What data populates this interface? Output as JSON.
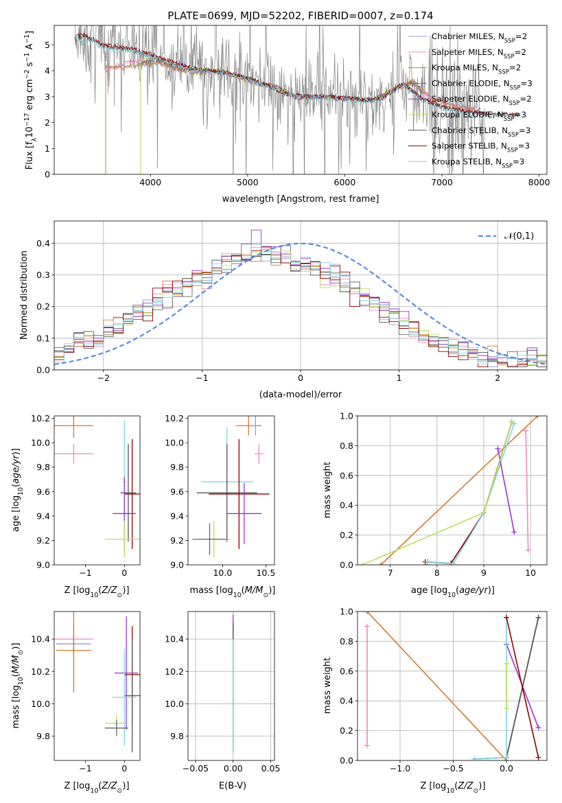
{
  "colors": {
    "chabrier_miles": "#8da0cb",
    "salpeter_miles": "#e78ac3",
    "kroupa_miles": "#d07a2a",
    "chabrier_elodie": "#666666",
    "salpeter_elodie": "#9932cc",
    "kroupa_elodie": "#b8e05a",
    "chabrier_stelib": "#555555",
    "salpeter_stelib": "#8b0000",
    "kroupa_stelib": "#7fd3e0",
    "data": "#808080",
    "normal": "#5b8ad9"
  },
  "chart_data": [
    {
      "id": "spectrum",
      "type": "line",
      "title": "PLATE=0699, MJD=52202, FIBERID=0007, z=0.174",
      "xlabel": "wavelength [Angstrom, rest frame]",
      "ylabel": "Flux [f_λ 10^-17 erg cm^-2 s^-1 A^-1]",
      "xlim": [
        3010,
        8080
      ],
      "ylim": [
        0,
        5.75
      ],
      "xticks": [
        4000,
        5000,
        6000,
        7000,
        8000
      ],
      "yticks": [
        0,
        1,
        2,
        3,
        4,
        5
      ],
      "legend_position": "top-right",
      "series": [
        {
          "name": "Chabrier MILES, N_SSP=2",
          "x": [
            3540,
            3700,
            3900,
            4100,
            4300,
            4500,
            4700,
            4900,
            5100,
            5300,
            5500,
            5700,
            6000,
            6300,
            6500,
            6700,
            6900,
            7200,
            7400
          ],
          "y": [
            4.1,
            4.2,
            4.2,
            4.3,
            4.0,
            3.9,
            3.95,
            3.8,
            3.55,
            3.4,
            3.0,
            3.05,
            2.95,
            2.9,
            3.3,
            3.6,
            2.9,
            2.6,
            2.5
          ]
        },
        {
          "name": "Salpeter MILES, N_SSP=2",
          "x": [
            3540,
            3700,
            3900,
            4100,
            4300,
            4500,
            4700,
            4900,
            5100,
            5300,
            5500,
            5700,
            6000,
            6300,
            6500,
            6700,
            6900,
            7200,
            7400
          ],
          "y": [
            4.0,
            4.3,
            4.4,
            4.4,
            4.1,
            4.0,
            4.0,
            3.8,
            3.5,
            3.35,
            2.95,
            3.0,
            2.9,
            2.85,
            3.25,
            3.55,
            2.85,
            2.55,
            2.45
          ]
        },
        {
          "name": "Kroupa MILES, N_SSP=2",
          "x": [
            3540,
            3700,
            3900,
            4100,
            4300,
            4500,
            4700,
            4900,
            5100,
            5300,
            5500,
            5700,
            6000,
            6300,
            6500,
            6700,
            6900,
            7200,
            7400
          ],
          "y": [
            4.2,
            4.1,
            4.25,
            4.3,
            4.05,
            3.9,
            3.95,
            3.75,
            3.5,
            3.4,
            2.95,
            3.0,
            2.9,
            2.85,
            3.3,
            3.6,
            2.9,
            2.55,
            2.5
          ]
        },
        {
          "name": "Chabrier ELODIE, N_SSP=3",
          "x": [
            3900,
            4100,
            4300,
            4500,
            4700,
            4900,
            5100,
            5300,
            5500,
            5700,
            6000,
            6300,
            6500,
            6700,
            6800
          ],
          "y": [
            4.3,
            4.4,
            4.1,
            4.0,
            4.0,
            3.8,
            3.5,
            3.35,
            2.95,
            3.0,
            2.95,
            2.85,
            3.3,
            3.5,
            3.2
          ]
        },
        {
          "name": "Salpeter ELODIE, N_SSP=2",
          "x": [
            3900,
            4100,
            4300,
            4500,
            4700,
            4900,
            5100,
            5300,
            5500,
            5700,
            6000,
            6300,
            6500,
            6700,
            6800
          ],
          "y": [
            4.6,
            4.5,
            4.25,
            4.05,
            4.0,
            3.8,
            3.5,
            3.35,
            2.95,
            3.0,
            2.9,
            2.85,
            3.3,
            3.55,
            3.2
          ]
        },
        {
          "name": "Kroupa ELODIE, N_SSP=3",
          "x": [
            3900,
            4100,
            4300,
            4500,
            4700,
            4900,
            5100,
            5300,
            5500,
            5700,
            6000,
            6300,
            6500,
            6700,
            6800
          ],
          "y": [
            4.5,
            4.5,
            4.2,
            4.05,
            4.0,
            3.8,
            3.5,
            3.35,
            2.95,
            3.0,
            2.9,
            2.85,
            3.3,
            3.55,
            3.2
          ]
        },
        {
          "name": "Chabrier STELIB, N_SSP=3",
          "x": [
            3220,
            3300,
            3400,
            3500,
            3600,
            3800,
            4000,
            4200,
            4400,
            4600,
            4800,
            5000,
            5200,
            5400,
            5600,
            5800,
            6000,
            6200,
            6400,
            6600,
            6800,
            7000,
            7200,
            7400,
            7600,
            7800
          ],
          "y": [
            5.2,
            5.3,
            5.2,
            5.0,
            4.9,
            4.8,
            4.6,
            4.3,
            4.1,
            4.0,
            3.9,
            3.7,
            3.45,
            3.1,
            3.0,
            3.0,
            2.95,
            2.85,
            2.95,
            3.5,
            2.9,
            2.6,
            2.45,
            2.35,
            2.3,
            2.3
          ]
        },
        {
          "name": "Salpeter STELIB, N_SSP=3",
          "x": [
            3220,
            3300,
            3400,
            3500,
            3600,
            3800,
            4000,
            4200,
            4400,
            4600,
            4800,
            5000,
            5200,
            5400,
            5600,
            5800,
            6000,
            6200,
            6400,
            6600,
            6800,
            7000,
            7200,
            7400,
            7600,
            7800
          ],
          "y": [
            5.3,
            5.4,
            5.25,
            5.0,
            4.95,
            4.85,
            4.65,
            4.35,
            4.1,
            4.0,
            3.9,
            3.7,
            3.45,
            3.1,
            3.0,
            3.0,
            2.95,
            2.85,
            2.95,
            3.5,
            2.9,
            2.6,
            2.45,
            2.35,
            2.3,
            2.3
          ]
        },
        {
          "name": "Kroupa STELIB, N_SSP=3",
          "x": [
            3220,
            3300,
            3400,
            3500,
            3600,
            3800,
            4000,
            4200,
            4400,
            4600,
            4800,
            5000,
            5200,
            5400,
            5600,
            5800,
            6000,
            6200,
            6400,
            6600,
            6800,
            7000,
            7200,
            7400,
            7600,
            7800
          ],
          "y": [
            5.4,
            5.1,
            5.2,
            4.9,
            4.8,
            4.75,
            4.55,
            4.3,
            4.05,
            3.95,
            3.85,
            3.65,
            3.4,
            3.1,
            2.95,
            2.95,
            2.9,
            2.8,
            2.9,
            3.45,
            2.85,
            2.55,
            2.4,
            2.3,
            2.25,
            2.25
          ]
        }
      ]
    },
    {
      "id": "residuals",
      "type": "line",
      "xlabel": "(data-model)/error",
      "ylabel": "Normed distribution",
      "xlim": [
        -2.5,
        2.5
      ],
      "ylim": [
        0,
        0.47
      ],
      "xticks": [
        -2,
        -1,
        0,
        1,
        2
      ],
      "yticks": [
        0,
        0.1,
        0.2,
        0.3,
        0.4
      ],
      "legend_position": "top-right",
      "legend": "𝒩(0,1)",
      "normal_mean": 0,
      "normal_std": 1,
      "bin_width": 0.1,
      "residual_histogram_approx": [
        0.05,
        0.06,
        0.08,
        0.09,
        0.1,
        0.12,
        0.14,
        0.16,
        0.18,
        0.2,
        0.22,
        0.24,
        0.25,
        0.27,
        0.29,
        0.3,
        0.32,
        0.34,
        0.35,
        0.36,
        0.38,
        0.37,
        0.36,
        0.35,
        0.34,
        0.33,
        0.32,
        0.3,
        0.29,
        0.27,
        0.25,
        0.23,
        0.21,
        0.19,
        0.17,
        0.15,
        0.13,
        0.11,
        0.09,
        0.08,
        0.07,
        0.06,
        0.05,
        0.04,
        0.04,
        0.03,
        0.03,
        0.03,
        0.03,
        0.03
      ]
    },
    {
      "id": "age_vs_Z",
      "type": "scatter",
      "xlabel": "Z [log10(Z/Z⊙)]",
      "ylabel": "age  [log10(age/yr)]",
      "xlim": [
        -1.8,
        0.4
      ],
      "ylim": [
        9.0,
        10.22
      ],
      "xticks": [
        -1,
        0
      ],
      "yticks": [
        9.0,
        9.2,
        9.4,
        9.6,
        9.8,
        10.0,
        10.2
      ],
      "points": [
        {
          "series": "kroupa_miles",
          "x": -1.3,
          "xerr": 0.5,
          "y": 10.14,
          "yerr": 0.1
        },
        {
          "series": "salpeter_miles",
          "x": -1.3,
          "xerr": 0.5,
          "y": 9.91,
          "yerr": 0.08
        },
        {
          "series": "kroupa_stelib",
          "x": 0.0,
          "xerr": 0.03,
          "y": 9.68,
          "yerr": 0.5
        },
        {
          "series": "salpeter_stelib",
          "x": 0.2,
          "xerr": 0.2,
          "y": 9.58,
          "yerr": 0.45
        },
        {
          "series": "chabrier_stelib",
          "x": 0.1,
          "xerr": 0.2,
          "y": 9.59,
          "yerr": 0.4
        },
        {
          "series": "salpeter_elodie",
          "x": 0.0,
          "xerr": 0.3,
          "y": 9.42,
          "yerr": 0.3
        },
        {
          "series": "kroupa_elodie",
          "x": 0.0,
          "xerr": 0.5,
          "y": 9.21,
          "yerr": 0.15
        }
      ]
    },
    {
      "id": "age_vs_mass",
      "type": "scatter",
      "xlabel": "mass [log10(M/M⊙)]",
      "ylabel": "",
      "xlim": [
        9.6,
        10.6
      ],
      "ylim": [
        9.0,
        10.22
      ],
      "xticks": [
        10.0,
        10.5
      ],
      "yticks": [
        9.0,
        9.2,
        9.4,
        9.6,
        9.8,
        10.0,
        10.2
      ],
      "points": [
        {
          "series": "kroupa_miles",
          "x": 10.3,
          "xerr": 0.15,
          "y": 10.14,
          "yerr": 0.08
        },
        {
          "series": "chabrier_miles",
          "x": 10.38,
          "xerr": 0.05,
          "y": 10.14,
          "yerr": 0.08
        },
        {
          "series": "salpeter_miles",
          "x": 10.42,
          "xerr": 0.05,
          "y": 9.91,
          "yerr": 0.08
        },
        {
          "series": "kroupa_stelib",
          "x": 10.05,
          "xerr": 0.3,
          "y": 9.68,
          "yerr": 0.45
        },
        {
          "series": "chabrier_stelib",
          "x": 10.05,
          "xerr": 0.35,
          "y": 9.59,
          "yerr": 0.4
        },
        {
          "series": "salpeter_stelib",
          "x": 10.19,
          "xerr": 0.35,
          "y": 9.58,
          "yerr": 0.45
        },
        {
          "series": "salpeter_elodie",
          "x": 10.25,
          "xerr": 0.2,
          "y": 9.42,
          "yerr": 0.25
        },
        {
          "series": "kroupa_elodie",
          "x": 9.9,
          "xerr": 0.2,
          "y": 9.21,
          "yerr": 0.15
        },
        {
          "series": "chabrier_elodie",
          "x": 9.85,
          "xerr": 0.2,
          "y": 9.21,
          "yerr": 0.13
        }
      ]
    },
    {
      "id": "weight_vs_age",
      "type": "line",
      "xlabel": "age  [log10(age/yr)]",
      "ylabel": "mass weight",
      "xlim": [
        6.3,
        10.35
      ],
      "ylim": [
        0,
        1.0
      ],
      "xticks": [
        7,
        8,
        9,
        10
      ],
      "yticks": [
        0,
        0.2,
        0.4,
        0.6,
        0.8,
        1.0
      ],
      "series": [
        {
          "name": "kroupa_miles",
          "x": [
            6.8,
            10.15
          ],
          "y": [
            0.0,
            1.0
          ]
        },
        {
          "name": "salpeter_miles",
          "x": [
            9.9,
            9.95
          ],
          "y": [
            0.9,
            0.1
          ]
        },
        {
          "name": "chabrier_stelib",
          "x": [
            7.8,
            8.3,
            9.0,
            9.6
          ],
          "y": [
            0.02,
            0.01,
            0.35,
            0.96
          ]
        },
        {
          "name": "salpeter_stelib",
          "x": [
            7.75,
            8.3,
            9.0,
            9.6
          ],
          "y": [
            0.02,
            0.01,
            0.35,
            0.96
          ]
        },
        {
          "name": "kroupa_stelib",
          "x": [
            7.8,
            8.35,
            9.0,
            9.65
          ],
          "y": [
            0.02,
            0.01,
            0.35,
            0.95
          ]
        },
        {
          "name": "salpeter_elodie",
          "x": [
            9.3,
            9.65
          ],
          "y": [
            0.78,
            0.22
          ]
        },
        {
          "name": "kroupa_elodie",
          "x": [
            6.4,
            9.0,
            9.3,
            9.6
          ],
          "y": [
            0.0,
            0.35,
            0.65,
            0.96
          ]
        }
      ]
    },
    {
      "id": "mass_vs_Z",
      "type": "scatter",
      "xlabel": "Z [log10(Z/Z⊙)]",
      "ylabel": "mass [log10(M/M⊙)]",
      "xlim": [
        -1.8,
        0.4
      ],
      "ylim": [
        9.65,
        10.57
      ],
      "xticks": [
        -1,
        0
      ],
      "yticks": [
        9.8,
        10.0,
        10.2,
        10.4
      ],
      "points": [
        {
          "series": "salpeter_miles",
          "x": -1.3,
          "xerr": 0.5,
          "y": 10.4,
          "yerr": 0.1
        },
        {
          "series": "chabrier_miles",
          "x": -1.3,
          "xerr": 0.45,
          "y": 10.37,
          "yerr": 0.05
        },
        {
          "series": "kroupa_miles",
          "x": -1.3,
          "xerr": 0.45,
          "y": 10.33,
          "yerr": 0.26
        },
        {
          "series": "salpeter_elodie",
          "x": 0.05,
          "xerr": 0.3,
          "y": 10.19,
          "yerr": 0.35
        },
        {
          "series": "salpeter_stelib",
          "x": 0.2,
          "xerr": 0.2,
          "y": 10.18,
          "yerr": 0.3
        },
        {
          "series": "chabrier_stelib",
          "x": 0.2,
          "xerr": 0.2,
          "y": 10.05,
          "yerr": 0.35
        },
        {
          "series": "kroupa_stelib",
          "x": 0.0,
          "xerr": 0.3,
          "y": 10.04,
          "yerr": 0.3
        },
        {
          "series": "kroupa_elodie",
          "x": -0.2,
          "xerr": 0.3,
          "y": 9.88,
          "yerr": 0.05
        },
        {
          "series": "chabrier_elodie",
          "x": -0.2,
          "xerr": 0.3,
          "y": 9.85,
          "yerr": 0.05
        }
      ]
    },
    {
      "id": "mass_vs_ebv",
      "type": "scatter",
      "xlabel": "E(B-V)",
      "ylabel": "",
      "xlim": [
        -0.06,
        0.055
      ],
      "ylim": [
        9.65,
        10.57
      ],
      "xticks": [
        -0.05,
        0.0,
        0.05
      ],
      "yticks": [
        9.8,
        10.0,
        10.2,
        10.4
      ],
      "points": [
        {
          "series": "salpeter_elodie",
          "x": 0.0,
          "xerr": 0.0,
          "y": 10.4,
          "yerr": 0.15
        },
        {
          "series": "salpeter_stelib",
          "x": 0.0,
          "xerr": 0.0,
          "y": 10.4,
          "yerr": 0.1
        },
        {
          "series": "chabrier_stelib",
          "x": 0.0,
          "xerr": 0.0,
          "y": 10.1,
          "yerr": 0.4
        },
        {
          "series": "kroupa_stelib",
          "x": 0.0,
          "xerr": 0.0,
          "y": 10.05,
          "yerr": 0.35
        }
      ]
    },
    {
      "id": "weight_vs_Z",
      "type": "line",
      "xlabel": "Z [log10(Z/Z⊙)]",
      "ylabel": "mass weight",
      "xlim": [
        -1.4,
        0.38
      ],
      "ylim": [
        0,
        1.0
      ],
      "xticks": [
        -1.0,
        -0.5,
        0.0
      ],
      "yticks": [
        0,
        0.2,
        0.4,
        0.6,
        0.8,
        1.0
      ],
      "series": [
        {
          "name": "kroupa_miles",
          "x": [
            -1.31,
            0.0
          ],
          "y": [
            1.0,
            0.0
          ]
        },
        {
          "name": "salpeter_miles",
          "x": [
            -1.31,
            -1.31
          ],
          "y": [
            0.9,
            0.1
          ]
        },
        {
          "name": "salpeter_stelib",
          "x": [
            0.0,
            0.3
          ],
          "y": [
            0.02,
            0.96
          ]
        },
        {
          "name": "chabrier_stelib",
          "x": [
            -0.3,
            0.0,
            0.3
          ],
          "y": [
            0.01,
            0.02,
            0.96
          ]
        },
        {
          "name": "salpeter_elodie",
          "x": [
            0.0,
            0.3
          ],
          "y": [
            0.78,
            0.22
          ]
        },
        {
          "name": "kroupa_stelib",
          "x": [
            -0.3,
            0.0,
            0.0
          ],
          "y": [
            0.01,
            0.02,
            0.96
          ]
        },
        {
          "name": "kroupa_elodie",
          "x": [
            0.0,
            0.0
          ],
          "y": [
            0.35,
            0.65
          ]
        },
        {
          "name": "salpeter_stelib_cross",
          "x": [
            0.0,
            0.3
          ],
          "y": [
            0.96,
            0.02
          ]
        }
      ]
    }
  ]
}
